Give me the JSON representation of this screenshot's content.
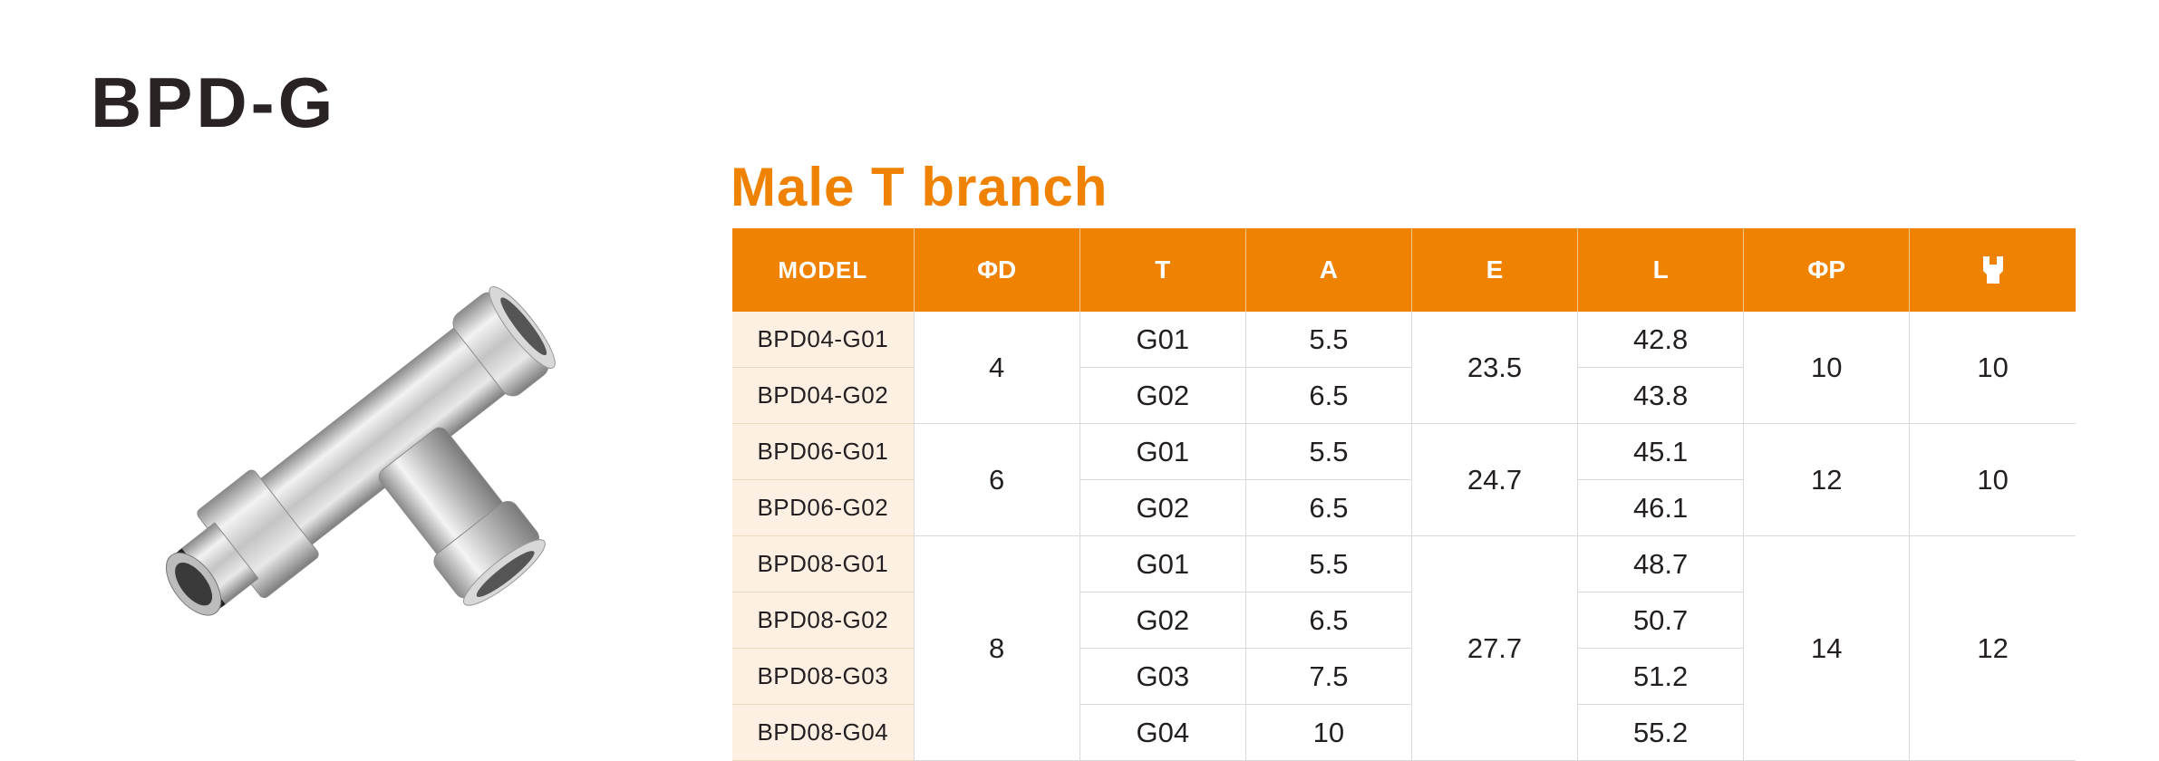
{
  "header": {
    "title": "BPD-G",
    "subtitle": "Male T branch"
  },
  "product_image": {
    "description_icon": "pneumatic-male-t-fitting",
    "color_metal": "#c9c9c9",
    "color_dark": "#2a2a2a"
  },
  "table": {
    "headers": {
      "model": "MODEL",
      "d": "ΦD",
      "t": "T",
      "a": "A",
      "e": "E",
      "l": "L",
      "p": "ΦP",
      "wrench_icon": "wrench-icon"
    },
    "accent_color": "#ef8200",
    "groups": [
      {
        "d": "4",
        "e": "23.5",
        "p": "10",
        "wrench": "10",
        "rows": [
          {
            "model": "BPD04-G01",
            "t": "G01",
            "a": "5.5",
            "l": "42.8"
          },
          {
            "model": "BPD04-G02",
            "t": "G02",
            "a": "6.5",
            "l": "43.8"
          }
        ]
      },
      {
        "d": "6",
        "e": "24.7",
        "p": "12",
        "wrench": "10",
        "rows": [
          {
            "model": "BPD06-G01",
            "t": "G01",
            "a": "5.5",
            "l": "45.1"
          },
          {
            "model": "BPD06-G02",
            "t": "G02",
            "a": "6.5",
            "l": "46.1"
          }
        ]
      },
      {
        "d": "8",
        "e": "27.7",
        "p": "14",
        "wrench": "12",
        "rows": [
          {
            "model": "BPD08-G01",
            "t": "G01",
            "a": "5.5",
            "l": "48.7"
          },
          {
            "model": "BPD08-G02",
            "t": "G02",
            "a": "6.5",
            "l": "50.7"
          },
          {
            "model": "BPD08-G03",
            "t": "G03",
            "a": "7.5",
            "l": "51.2"
          },
          {
            "model": "BPD08-G04",
            "t": "G04",
            "a": "10",
            "l": "55.2"
          }
        ]
      }
    ]
  }
}
